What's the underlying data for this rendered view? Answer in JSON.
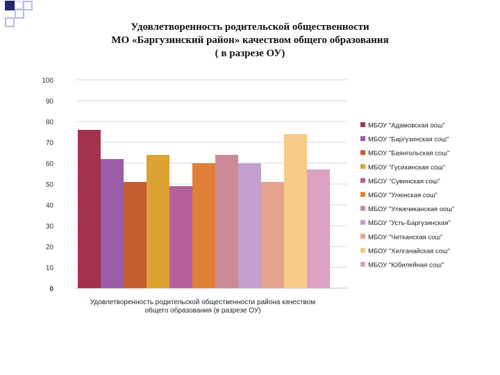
{
  "slide": {
    "title_lines": [
      "Удовлетворенность родительской общественности",
      "МО «Баргузинский район» качеством общего образования",
      "( в разрезе ОУ)"
    ]
  },
  "chart_data": {
    "type": "bar",
    "xlabel_lines": [
      "Удовлетворенность родительской общественности района  качеством",
      "общего образования (в разрезе ОУ)"
    ],
    "ylabel": "",
    "ylim": [
      0,
      100
    ],
    "yticks": [
      "0",
      "10",
      "20",
      "30",
      "40",
      "50",
      "60",
      "70",
      "80",
      "90",
      "100"
    ],
    "grid": true,
    "legend_position": "right",
    "series": [
      {
        "name": "МБОУ \"Адамовская оош\"",
        "value": 76,
        "color": "#a3324f"
      },
      {
        "name": "МБОУ \"Баргузинская сош\"",
        "value": 62,
        "color": "#9b5ca8"
      },
      {
        "name": "МБОУ \"Баянгольская сош\"",
        "value": 51,
        "color": "#c45e31"
      },
      {
        "name": "МБОУ \"Гусихинская сош\"",
        "value": 64,
        "color": "#dca232"
      },
      {
        "name": "МБОУ \"Сувинская сош\"",
        "value": 49,
        "color": "#b4609b"
      },
      {
        "name": "МБОУ \"Улюнская сош\"",
        "value": 60,
        "color": "#e07f37"
      },
      {
        "name": "МБОУ \"Улюкчиканская оош\"",
        "value": 64,
        "color": "#cc8a99"
      },
      {
        "name": "МБОУ \"Усть-Баргузинская\"",
        "value": 60,
        "color": "#c29fcd"
      },
      {
        "name": "МБОУ \"Читканская  сош\"",
        "value": 51,
        "color": "#e6a38c"
      },
      {
        "name": "МБОУ \"Хилганайская сош\"",
        "value": 74,
        "color": "#f6ca8b"
      },
      {
        "name": "МБОУ \"Юбилейная сош\"",
        "value": 57,
        "color": "#dca0c2"
      }
    ]
  }
}
